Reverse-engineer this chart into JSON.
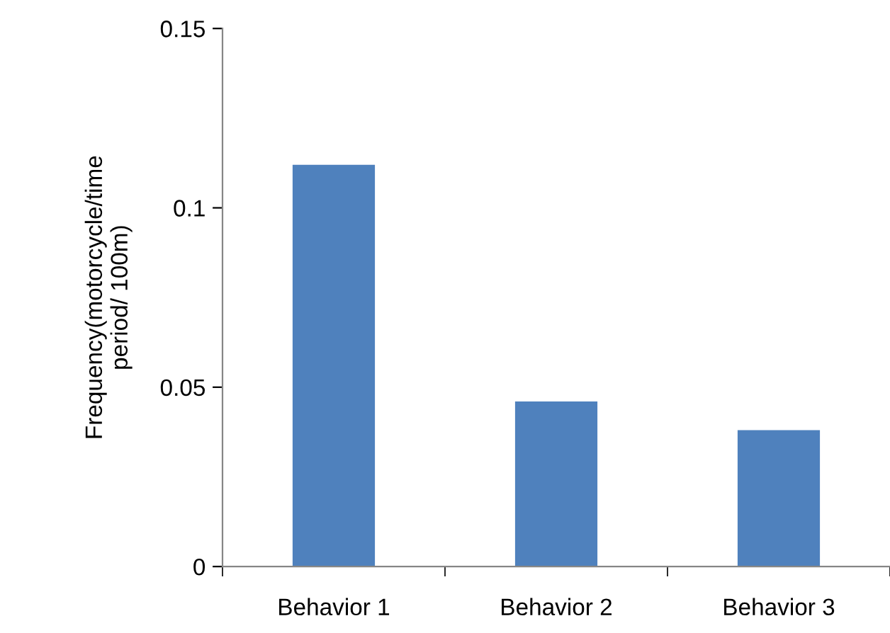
{
  "chart_data": {
    "type": "bar",
    "ylabel": "Frequency(motorcycle/time\nperiod/ 100m)",
    "categories": [
      "Behavior 1",
      "Behavior 2",
      "Behavior 3"
    ],
    "series": [
      {
        "color": "#4f81bd",
        "values": [
          0.112,
          0.046,
          0.038
        ]
      }
    ],
    "ylim": [
      0,
      0.15
    ],
    "yticks": [
      0,
      0.05,
      0.1,
      0.15
    ],
    "grid": false,
    "legend": false
  }
}
